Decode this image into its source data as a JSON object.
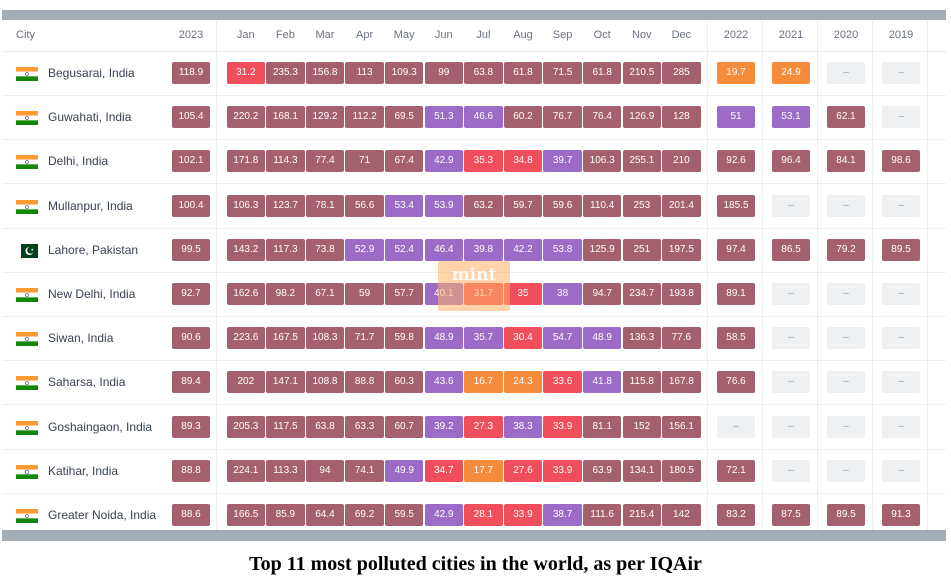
{
  "table": {
    "headers": [
      "City",
      "2023",
      "Jan",
      "Feb",
      "Mar",
      "Apr",
      "May",
      "Jun",
      "Jul",
      "Aug",
      "Sep",
      "Oct",
      "Nov",
      "Dec",
      "2022",
      "2021",
      "2020",
      "2019"
    ],
    "rows": [
      {
        "city": "Begusarai, India",
        "flag": "india",
        "annual": "118.9",
        "months": [
          "31.2",
          "235.3",
          "156.8",
          "113",
          "109.3",
          "99",
          "63.8",
          "61.8",
          "71.5",
          "61.8",
          "210.5",
          "285"
        ],
        "past": [
          "19.7",
          "24.9",
          "–",
          "–"
        ]
      },
      {
        "city": "Guwahati, India",
        "flag": "india",
        "annual": "105.4",
        "months": [
          "220.2",
          "168.1",
          "129.2",
          "112.2",
          "69.5",
          "51.3",
          "46.6",
          "60.2",
          "76.7",
          "76.4",
          "126.9",
          "128"
        ],
        "past": [
          "51",
          "53.1",
          "62.1",
          "–"
        ]
      },
      {
        "city": "Delhi, India",
        "flag": "india",
        "annual": "102.1",
        "months": [
          "171.8",
          "114.3",
          "77.4",
          "71",
          "67.4",
          "42.9",
          "35.3",
          "34.8",
          "39.7",
          "106.3",
          "255.1",
          "210"
        ],
        "past": [
          "92.6",
          "96.4",
          "84.1",
          "98.6"
        ]
      },
      {
        "city": "Mullanpur, India",
        "flag": "india",
        "annual": "100.4",
        "months": [
          "106.3",
          "123.7",
          "78.1",
          "56.6",
          "53.4",
          "53.9",
          "63.2",
          "59.7",
          "59.6",
          "110.4",
          "253",
          "201.4"
        ],
        "past": [
          "185.5",
          "–",
          "–",
          "–"
        ]
      },
      {
        "city": "Lahore, Pakistan",
        "flag": "pakistan",
        "annual": "99.5",
        "months": [
          "143.2",
          "117.3",
          "73.8",
          "52.9",
          "52.4",
          "46.4",
          "39.8",
          "42.2",
          "53.8",
          "125.9",
          "251",
          "197.5"
        ],
        "past": [
          "97.4",
          "86.5",
          "79.2",
          "89.5"
        ]
      },
      {
        "city": "New Delhi, India",
        "flag": "india",
        "annual": "92.7",
        "months": [
          "162.6",
          "98.2",
          "67.1",
          "59",
          "57.7",
          "40.1",
          "31.7",
          "35",
          "38",
          "94.7",
          "234.7",
          "193.8"
        ],
        "past": [
          "89.1",
          "–",
          "–",
          "–"
        ]
      },
      {
        "city": "Siwan, India",
        "flag": "india",
        "annual": "90.6",
        "months": [
          "223.6",
          "167.5",
          "108.3",
          "71.7",
          "59.8",
          "48.9",
          "35.7",
          "30.4",
          "54.7",
          "48.9",
          "136.3",
          "77.6"
        ],
        "past": [
          "58.5",
          "–",
          "–",
          "–"
        ]
      },
      {
        "city": "Saharsa, India",
        "flag": "india",
        "annual": "89.4",
        "months": [
          "202",
          "147.1",
          "108.8",
          "88.8",
          "60.3",
          "43.6",
          "16.7",
          "24.3",
          "33.6",
          "41.8",
          "115.8",
          "167.8"
        ],
        "past": [
          "76.6",
          "–",
          "–",
          "–"
        ]
      },
      {
        "city": "Goshaingaon, India",
        "flag": "india",
        "annual": "89.3",
        "months": [
          "205.3",
          "117.5",
          "63.8",
          "63.3",
          "60.7",
          "39.2",
          "27.3",
          "38.3",
          "33.9",
          "81.1",
          "152",
          "156.1"
        ],
        "past": [
          "–",
          "–",
          "–",
          "–"
        ]
      },
      {
        "city": "Katihar, India",
        "flag": "india",
        "annual": "88.8",
        "months": [
          "224.1",
          "113.3",
          "94",
          "74.1",
          "49.9",
          "34.7",
          "17.7",
          "27.6",
          "33.9",
          "63.9",
          "134.1",
          "180.5"
        ],
        "past": [
          "72.1",
          "–",
          "–",
          "–"
        ]
      },
      {
        "city": "Greater Noida, India",
        "flag": "india",
        "annual": "88.6",
        "months": [
          "166.5",
          "85.9",
          "64.4",
          "69.2",
          "59.5",
          "42.9",
          "28.1",
          "33.9",
          "38.7",
          "111.6",
          "215.4",
          "142"
        ],
        "past": [
          "83.2",
          "87.5",
          "89.5",
          "91.3"
        ]
      }
    ]
  },
  "watermark": "mint",
  "caption": "Top 11 most polluted cities in the world, as per IQAir",
  "colors": {
    "maroon": "#a5606f",
    "purple": "#9b6bc7",
    "red": "#f04e5a",
    "orange": "#f68b3c",
    "empty": "#eef0f2",
    "bar": "#a4acb8"
  }
}
